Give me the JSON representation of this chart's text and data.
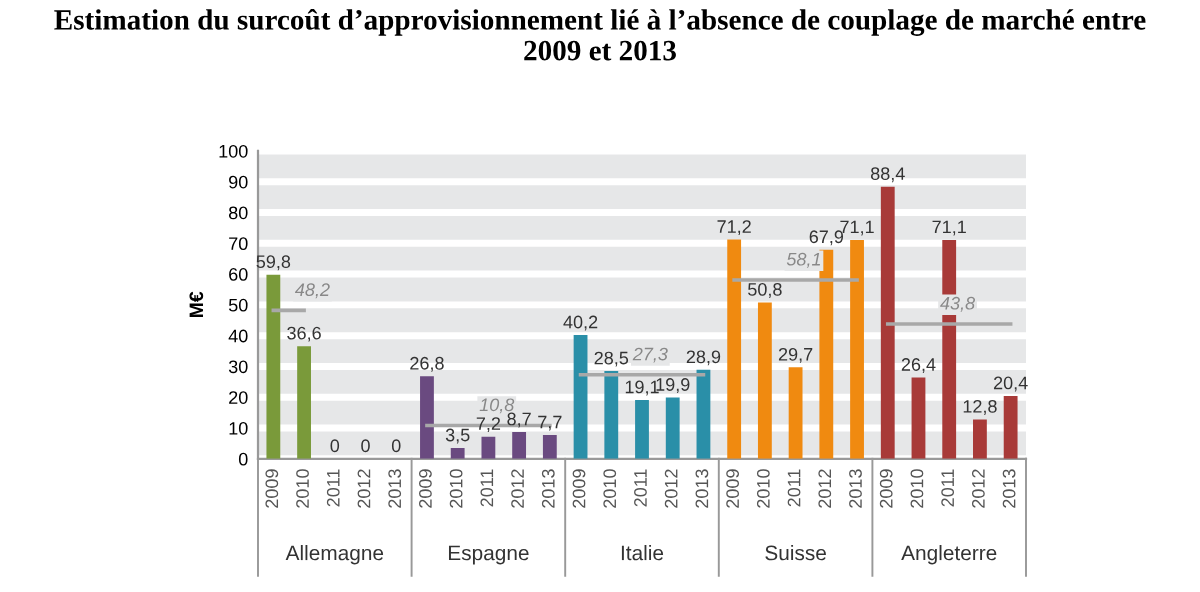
{
  "chart_data": {
    "type": "bar",
    "title": "Estimation du surcoût d’approvisionnement lié à l’absence de couplage de marché entre\n2009 et 2013",
    "ylabel": "M€",
    "categories": [
      "2009",
      "2010",
      "2011",
      "2012",
      "2013",
      "2009",
      "2010",
      "2011",
      "2012",
      "2013",
      "2009",
      "2010",
      "2011",
      "2012",
      "2013",
      "2009",
      "2010",
      "2011",
      "2012",
      "2013",
      "2009",
      "2010",
      "2011",
      "2012",
      "2013"
    ],
    "series": [
      {
        "values": [
          59.8,
          36.6,
          0,
          0,
          0,
          26.8,
          3.5,
          7.2,
          8.7,
          7.7,
          40.2,
          28.5,
          19.1,
          19.9,
          28.9,
          71.2,
          50.8,
          29.7,
          67.9,
          71.1,
          88.4,
          26.4,
          71.1,
          12.8,
          20.4
        ],
        "value_labels": [
          "59,8",
          "36,6",
          "0",
          "0",
          "0",
          "26,8",
          "3,5",
          "7,2",
          "8,7",
          "7,7",
          "40,2",
          "28,5",
          "19,1",
          "19,9",
          "28,9",
          "71,2",
          "50,8",
          "29,7",
          "67,9",
          "71,1",
          "88,4",
          "26,4",
          "71,1",
          "12,8",
          "20,4"
        ],
        "colors": [
          "#7a9a3a",
          "#7a9a3a",
          "#7a9a3a",
          "#7a9a3a",
          "#7a9a3a",
          "#6a4a80",
          "#6a4a80",
          "#6a4a80",
          "#6a4a80",
          "#6a4a80",
          "#2a8fa8",
          "#2a8fa8",
          "#2a8fa8",
          "#2a8fa8",
          "#2a8fa8",
          "#f08a10",
          "#f08a10",
          "#f08a10",
          "#f08a10",
          "#f08a10",
          "#a83a38",
          "#a83a38",
          "#a83a38",
          "#a83a38",
          "#a83a38"
        ]
      },
      {
        "type": "line",
        "color": "#a8a8a8",
        "values": [
          48.2,
          48.2,
          null,
          null,
          null,
          null,
          null,
          null,
          null,
          null,
          null,
          null,
          null,
          null,
          null,
          null,
          null,
          null,
          null,
          null,
          null,
          null,
          null,
          null,
          null
        ],
        "value_labels": [
          null,
          "48,2",
          null,
          null,
          null,
          null,
          null,
          null,
          null,
          null,
          null,
          null,
          null,
          null,
          null,
          null,
          null,
          null,
          null,
          null,
          null,
          null,
          null,
          null,
          null
        ]
      },
      {
        "type": "line",
        "color": "#a8a8a8",
        "values": [
          null,
          null,
          null,
          null,
          null,
          10.8,
          10.8,
          10.8,
          10.8,
          10.8,
          null,
          null,
          null,
          null,
          null,
          null,
          null,
          null,
          null,
          null,
          null,
          null,
          null,
          null,
          null
        ],
        "value_labels": [
          null,
          null,
          null,
          null,
          null,
          null,
          null,
          "10,8",
          null,
          null,
          null,
          null,
          null,
          null,
          null,
          null,
          null,
          null,
          null,
          null,
          null,
          null,
          null,
          null,
          null
        ]
      },
      {
        "type": "line",
        "color": "#a8a8a8",
        "values": [
          null,
          null,
          null,
          null,
          null,
          null,
          null,
          null,
          null,
          null,
          27.3,
          27.3,
          27.3,
          27.3,
          27.3,
          null,
          null,
          null,
          null,
          null,
          null,
          null,
          null,
          null,
          null
        ],
        "value_labels": [
          null,
          null,
          null,
          null,
          null,
          null,
          null,
          null,
          null,
          null,
          null,
          null,
          "27,3",
          null,
          null,
          null,
          null,
          null,
          null,
          null,
          null,
          null,
          null,
          null,
          null
        ]
      },
      {
        "type": "line",
        "color": "#a8a8a8",
        "values": [
          null,
          null,
          null,
          null,
          null,
          null,
          null,
          null,
          null,
          null,
          null,
          null,
          null,
          null,
          null,
          58.1,
          58.1,
          58.1,
          58.1,
          58.1,
          null,
          null,
          null,
          null,
          null
        ],
        "value_labels": [
          null,
          null,
          null,
          null,
          null,
          null,
          null,
          null,
          null,
          null,
          null,
          null,
          null,
          null,
          null,
          null,
          null,
          "58,1",
          null,
          null,
          null,
          null,
          null,
          null,
          null
        ]
      },
      {
        "type": "line",
        "color": "#a8a8a8",
        "values": [
          null,
          null,
          null,
          null,
          null,
          null,
          null,
          null,
          null,
          null,
          null,
          null,
          null,
          null,
          null,
          null,
          null,
          null,
          null,
          null,
          43.8,
          43.8,
          43.8,
          43.8,
          43.8
        ],
        "value_labels": [
          null,
          null,
          null,
          null,
          null,
          null,
          null,
          null,
          null,
          null,
          null,
          null,
          null,
          null,
          null,
          null,
          null,
          null,
          null,
          null,
          null,
          null,
          "43,8",
          null,
          null
        ]
      }
    ],
    "annotations": [
      "Allemagne",
      "Espagne",
      "Italie",
      "Suisse",
      "Angleterre"
    ],
    "ylim": [
      0,
      100
    ],
    "yticks": [
      0,
      10,
      20,
      30,
      40,
      50,
      60,
      70,
      80,
      90,
      100
    ],
    "grid": "y"
  }
}
